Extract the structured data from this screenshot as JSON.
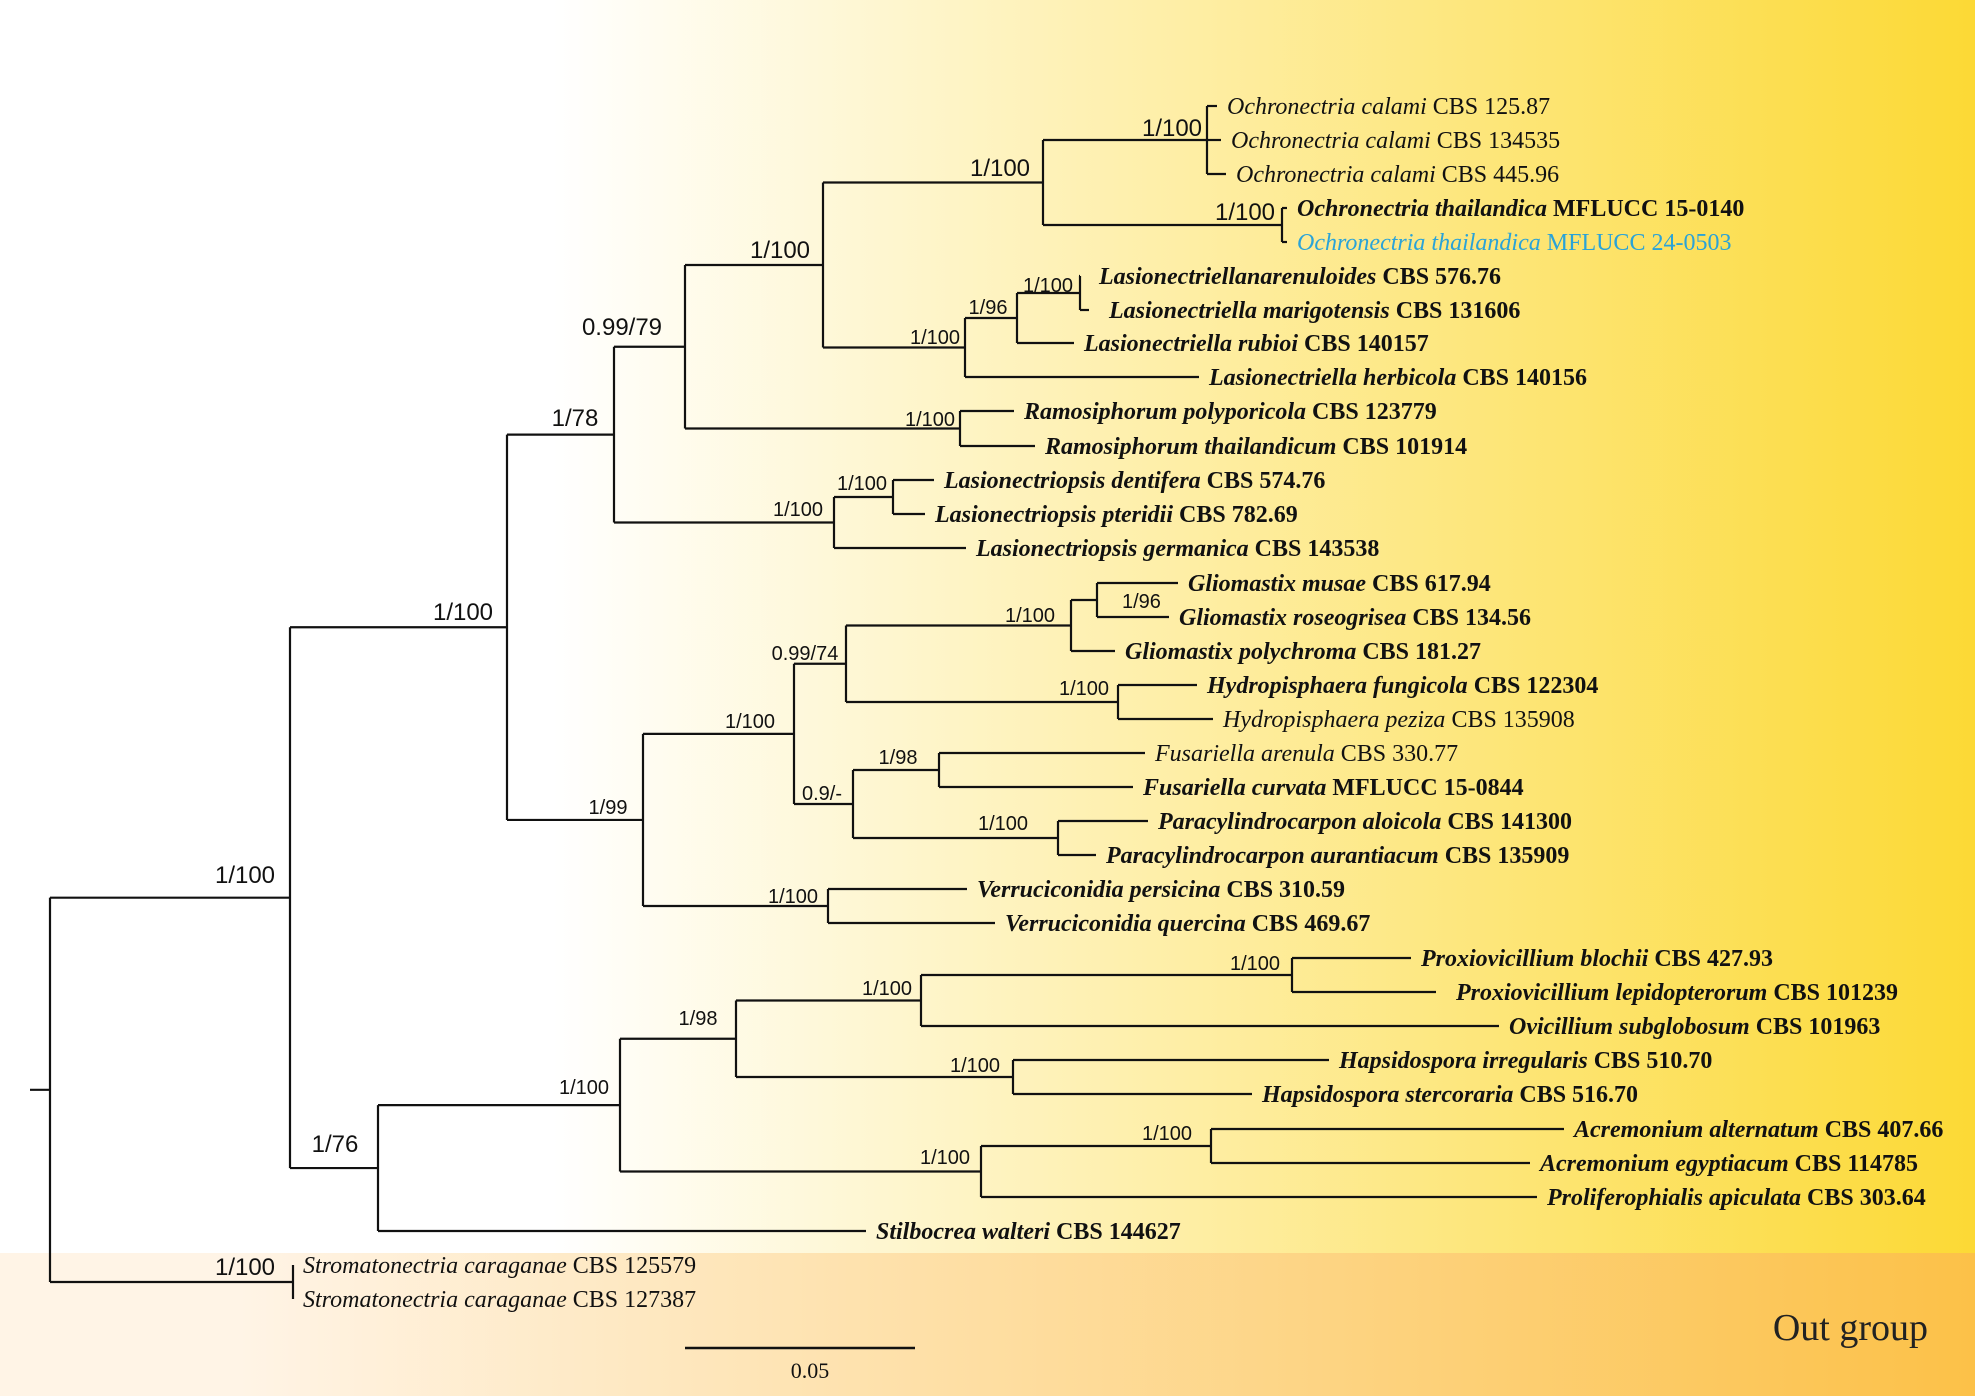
{
  "colors": {
    "ingroup_start": "#ffffff",
    "ingroup_end": "#fcd935",
    "outgroup_start": "#fff4e6",
    "outgroup_end": "#fcc148",
    "highlight": "#2aa3d8"
  },
  "outgroup_label": "Out group",
  "scale_bar": {
    "label": "0.05"
  },
  "taxa": [
    {
      "genus": "Ochronectria calami",
      "strain": "CBS 125.87",
      "bold": false
    },
    {
      "genus": "Ochronectria calami",
      "strain": " CBS 134535",
      "bold": false
    },
    {
      "genus": "Ochronectria calami",
      "strain": " CBS 445.96",
      "bold": false
    },
    {
      "genus": "Ochronectria thailandica",
      "strain": "MFLUCC 15-0140",
      "bold": true
    },
    {
      "genus": "Ochronectria thailandica",
      "strain": "MFLUCC 24-0503",
      "bold": false,
      "highlight": true
    },
    {
      "genus": "Lasionectriellanarenuloides",
      "strain": "CBS 576.76",
      "bold": true
    },
    {
      "genus": "Lasionectriella marigotensis",
      "strain": "CBS 131606",
      "bold": true
    },
    {
      "genus": "Lasionectriella rubioi",
      "strain": "CBS 140157",
      "bold": true
    },
    {
      "genus": "Lasionectriella herbicola",
      "strain": "CBS 140156",
      "bold": true
    },
    {
      "genus": "Ramosiphorum polyporicola",
      "strain": "CBS 123779",
      "bold": true
    },
    {
      "genus": "Ramosiphorum thailandicum",
      "strain": "CBS 101914",
      "bold": true
    },
    {
      "genus": "Lasionectriopsis dentifera",
      "strain": "CBS 574.76",
      "bold": true
    },
    {
      "genus": "Lasionectriopsis pteridii",
      "strain": "CBS 782.69",
      "bold": true
    },
    {
      "genus": "Lasionectriopsis germanica",
      "strain": "CBS 143538",
      "bold": true
    },
    {
      "genus": "Gliomastix musae",
      "strain": "CBS 617.94",
      "bold": true
    },
    {
      "genus": "Gliomastix roseogrisea",
      "strain": "CBS 134.56",
      "bold": true
    },
    {
      "genus": "Gliomastix polychroma",
      "strain": "CBS 181.27",
      "bold": true
    },
    {
      "genus": "Hydropisphaera fungicola",
      "strain": "CBS 122304",
      "bold": true
    },
    {
      "genus": "Hydropisphaera peziza",
      "strain": "CBS 135908",
      "bold": false
    },
    {
      "genus": "Fusariella arenula",
      "strain": "CBS 330.77",
      "bold": false
    },
    {
      "genus": "Fusariella curvata",
      "strain": "MFLUCC 15-0844",
      "bold": true
    },
    {
      "genus": "Paracylindrocarpon aloicola",
      "strain": "CBS 141300",
      "bold": true
    },
    {
      "genus": "Paracylindrocarpon aurantiacum",
      "strain": "CBS 135909",
      "bold": true
    },
    {
      "genus": "Verruciconidia persicina",
      "strain": "CBS 310.59",
      "bold": true
    },
    {
      "genus": "Verruciconidia quercina",
      "strain": "CBS 469.67",
      "bold": true
    },
    {
      "genus": "Proxiovicillium blochii",
      "strain": "CBS 427.93",
      "bold": true
    },
    {
      "genus": "Proxiovicillium lepidopterorum",
      "strain": "CBS 101239",
      "bold": true
    },
    {
      "genus": "Ovicillium subglobosum",
      "strain": "CBS 101963",
      "bold": true
    },
    {
      "genus": "Hapsidospora irregularis",
      "strain": "CBS 510.70",
      "bold": true
    },
    {
      "genus": "Hapsidospora stercoraria",
      "strain": "CBS 516.70",
      "bold": true
    },
    {
      "genus": "Acremonium alternatum",
      "strain": "CBS 407.66",
      "bold": true
    },
    {
      "genus": "Acremonium egyptiacum",
      "strain": "CBS 114785",
      "bold": true
    },
    {
      "genus": "Proliferophialis apiculata",
      "strain": "CBS 303.64",
      "bold": true
    },
    {
      "genus": "Stilbocrea walteri",
      "strain": "CBS 144627",
      "bold": true
    },
    {
      "genus": "Stromatonectria caraganae",
      "strain": "CBS 125579",
      "bold": false
    },
    {
      "genus": "Stromatonectria caraganae",
      "strain": "CBS 127387",
      "bold": false
    }
  ],
  "supports": [
    {
      "id": "och-calami",
      "label": "1/100"
    },
    {
      "id": "och-thai",
      "label": "1/100"
    },
    {
      "id": "ochronectria",
      "label": "1/100"
    },
    {
      "id": "las-nar-mar",
      "label": "1/100"
    },
    {
      "id": "las-3",
      "label": "1/96"
    },
    {
      "id": "lasionectriella",
      "label": "1/100"
    },
    {
      "id": "och-las",
      "label": "1/100"
    },
    {
      "id": "ramosiphorum",
      "label": "1/100"
    },
    {
      "id": "ramo-group",
      "label": "0.99/79"
    },
    {
      "id": "lasio-dent-pter",
      "label": "1/100"
    },
    {
      "id": "lasionectriopsis",
      "label": "1/100"
    },
    {
      "id": "upper-group",
      "label": "1/78"
    },
    {
      "id": "glio-mus-ros",
      "label": "1/96"
    },
    {
      "id": "gliomastix",
      "label": "1/100"
    },
    {
      "id": "hydropisphaera",
      "label": "1/100"
    },
    {
      "id": "glio-hydro",
      "label": "0.99/74"
    },
    {
      "id": "fusariella",
      "label": "1/98"
    },
    {
      "id": "paracylindrocarpon",
      "label": "1/100"
    },
    {
      "id": "fus-para",
      "label": "0.9/-"
    },
    {
      "id": "glio-fus",
      "label": "1/100"
    },
    {
      "id": "verruciconidia",
      "label": "1/100"
    },
    {
      "id": "lower-upper",
      "label": "1/99"
    },
    {
      "id": "main-upper",
      "label": "1/100"
    },
    {
      "id": "proxiovicillium",
      "label": "1/100"
    },
    {
      "id": "prox-ovic",
      "label": "1/100"
    },
    {
      "id": "hapsidospora",
      "label": "1/100"
    },
    {
      "id": "prox-haps",
      "label": "1/98"
    },
    {
      "id": "acremonium",
      "label": "1/100"
    },
    {
      "id": "acr-prol",
      "label": "1/100"
    },
    {
      "id": "bionect",
      "label": "1/100"
    },
    {
      "id": "lower-group",
      "label": "1/76"
    },
    {
      "id": "ingroup",
      "label": "1/100"
    },
    {
      "id": "stromatonectria",
      "label": "1/100"
    }
  ]
}
